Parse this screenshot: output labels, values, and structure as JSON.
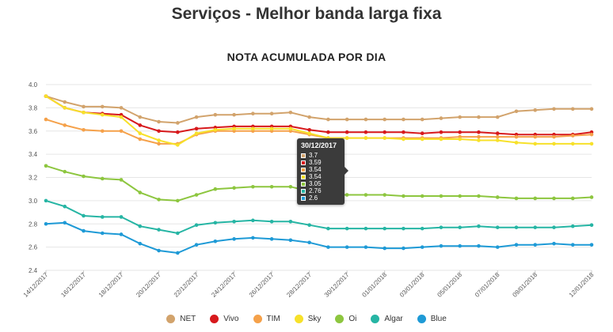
{
  "title": "Serviços - Melhor banda larga fixa",
  "chart_data": {
    "type": "line",
    "title": "NOTA ACUMULADA POR DIA",
    "ylim": [
      2.4,
      4.0
    ],
    "yticks": [
      "2.4",
      "2.6",
      "2.8",
      "3.0",
      "3.2",
      "3.4",
      "3.6",
      "3.8",
      "4.0"
    ],
    "grid": true,
    "x": [
      "14/12/2017",
      "15/12/2017",
      "16/12/2017",
      "17/12/2017",
      "18/12/2017",
      "19/12/2017",
      "20/12/2017",
      "21/12/2017",
      "22/12/2017",
      "23/12/2017",
      "24/12/2017",
      "25/12/2017",
      "26/12/2017",
      "27/12/2017",
      "28/12/2017",
      "29/12/2017",
      "30/12/2017",
      "31/12/2017",
      "01/01/2018",
      "02/01/2018",
      "03/01/2018",
      "04/01/2018",
      "05/01/2018",
      "06/01/2018",
      "07/01/2018",
      "08/01/2018",
      "09/01/2018",
      "10/01/2018",
      "11/01/2018",
      "12/01/2018"
    ],
    "xticks": [
      "14/12/2017",
      "16/12/2017",
      "18/12/2017",
      "20/12/2017",
      "22/12/2017",
      "24/12/2017",
      "26/12/2017",
      "28/12/2017",
      "30/12/2017",
      "01/01/2018",
      "03/01/2018",
      "05/01/2018",
      "07/01/2018",
      "09/01/2018",
      "12/01/2018"
    ],
    "legend_position": "bottom",
    "series": [
      {
        "name": "NET",
        "color": "#d2a36c",
        "values": [
          3.9,
          3.85,
          3.81,
          3.81,
          3.8,
          3.72,
          3.68,
          3.67,
          3.72,
          3.74,
          3.74,
          3.75,
          3.75,
          3.76,
          3.72,
          3.7,
          3.7,
          3.7,
          3.7,
          3.7,
          3.7,
          3.71,
          3.72,
          3.72,
          3.72,
          3.77,
          3.78,
          3.79,
          3.79,
          3.79
        ]
      },
      {
        "name": "Vivo",
        "color": "#d7191c",
        "values": [
          3.9,
          3.8,
          3.76,
          3.75,
          3.74,
          3.65,
          3.6,
          3.59,
          3.62,
          3.63,
          3.64,
          3.64,
          3.64,
          3.64,
          3.61,
          3.59,
          3.59,
          3.59,
          3.59,
          3.59,
          3.58,
          3.59,
          3.59,
          3.59,
          3.58,
          3.57,
          3.57,
          3.57,
          3.57,
          3.59
        ]
      },
      {
        "name": "TIM",
        "color": "#f5a14a",
        "values": [
          3.7,
          3.65,
          3.61,
          3.6,
          3.6,
          3.53,
          3.49,
          3.49,
          3.57,
          3.6,
          3.6,
          3.6,
          3.6,
          3.6,
          3.57,
          3.54,
          3.54,
          3.54,
          3.54,
          3.54,
          3.54,
          3.54,
          3.55,
          3.55,
          3.55,
          3.55,
          3.55,
          3.55,
          3.56,
          3.57
        ]
      },
      {
        "name": "Sky",
        "color": "#f7e12a",
        "values": [
          3.9,
          3.8,
          3.76,
          3.74,
          3.72,
          3.58,
          3.52,
          3.48,
          3.58,
          3.61,
          3.62,
          3.62,
          3.62,
          3.62,
          3.58,
          3.54,
          3.54,
          3.54,
          3.54,
          3.53,
          3.53,
          3.53,
          3.53,
          3.52,
          3.52,
          3.5,
          3.49,
          3.49,
          3.49,
          3.49
        ]
      },
      {
        "name": "Oi",
        "color": "#8dc63f",
        "values": [
          3.3,
          3.25,
          3.21,
          3.19,
          3.18,
          3.07,
          3.01,
          3.0,
          3.05,
          3.1,
          3.11,
          3.12,
          3.12,
          3.12,
          3.08,
          3.05,
          3.05,
          3.05,
          3.05,
          3.04,
          3.04,
          3.04,
          3.04,
          3.04,
          3.03,
          3.02,
          3.02,
          3.02,
          3.02,
          3.03
        ]
      },
      {
        "name": "Algar",
        "color": "#26b5a4",
        "values": [
          3.0,
          2.95,
          2.87,
          2.86,
          2.86,
          2.78,
          2.75,
          2.72,
          2.79,
          2.81,
          2.82,
          2.83,
          2.82,
          2.82,
          2.79,
          2.76,
          2.76,
          2.76,
          2.76,
          2.76,
          2.76,
          2.77,
          2.77,
          2.78,
          2.77,
          2.77,
          2.77,
          2.77,
          2.78,
          2.79
        ]
      },
      {
        "name": "Blue",
        "color": "#1e9ad6",
        "values": [
          2.8,
          2.81,
          2.74,
          2.72,
          2.71,
          2.63,
          2.57,
          2.55,
          2.62,
          2.65,
          2.67,
          2.68,
          2.67,
          2.66,
          2.64,
          2.6,
          2.6,
          2.6,
          2.59,
          2.59,
          2.6,
          2.61,
          2.61,
          2.61,
          2.6,
          2.62,
          2.62,
          2.63,
          2.62,
          2.62
        ]
      }
    ],
    "tooltip": {
      "date": "30/12/2017",
      "values": [
        "3.7",
        "3.59",
        "3.54",
        "3.54",
        "3.05",
        "2.76",
        "2.6"
      ]
    }
  }
}
